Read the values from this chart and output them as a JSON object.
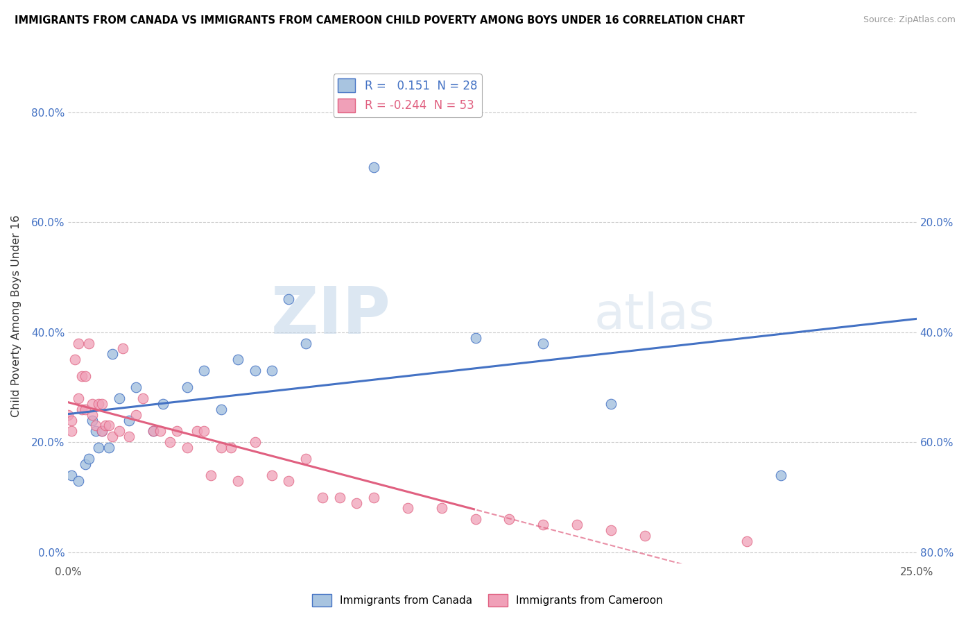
{
  "title": "IMMIGRANTS FROM CANADA VS IMMIGRANTS FROM CAMEROON CHILD POVERTY AMONG BOYS UNDER 16 CORRELATION CHART",
  "source": "Source: ZipAtlas.com",
  "ylabel": "Child Poverty Among Boys Under 16",
  "xlim": [
    0.0,
    0.25
  ],
  "ylim": [
    -0.02,
    0.88
  ],
  "yticks": [
    0.0,
    0.2,
    0.4,
    0.6,
    0.8
  ],
  "ytick_labels": [
    "0.0%",
    "20.0%",
    "40.0%",
    "60.0%",
    "80.0%"
  ],
  "right_ytick_labels": [
    "80.0%",
    "60.0%",
    "40.0%",
    "20.0%",
    ""
  ],
  "canada_R": 0.151,
  "canada_N": 28,
  "cameroon_R": -0.244,
  "cameroon_N": 53,
  "canada_color": "#a8c4e0",
  "cameroon_color": "#f0a0b8",
  "canada_line_color": "#4472c4",
  "cameroon_line_color": "#e06080",
  "watermark_zip": "ZIP",
  "watermark_atlas": "atlas",
  "canada_scatter_x": [
    0.001,
    0.003,
    0.005,
    0.006,
    0.007,
    0.008,
    0.009,
    0.01,
    0.012,
    0.013,
    0.015,
    0.018,
    0.02,
    0.025,
    0.028,
    0.035,
    0.04,
    0.045,
    0.05,
    0.055,
    0.06,
    0.065,
    0.07,
    0.09,
    0.12,
    0.14,
    0.16,
    0.21
  ],
  "canada_scatter_y": [
    0.14,
    0.13,
    0.16,
    0.17,
    0.24,
    0.22,
    0.19,
    0.22,
    0.19,
    0.36,
    0.28,
    0.24,
    0.3,
    0.22,
    0.27,
    0.3,
    0.33,
    0.26,
    0.35,
    0.33,
    0.33,
    0.46,
    0.38,
    0.7,
    0.39,
    0.38,
    0.27,
    0.14
  ],
  "cameroon_scatter_x": [
    0.0,
    0.001,
    0.001,
    0.002,
    0.003,
    0.003,
    0.004,
    0.004,
    0.005,
    0.005,
    0.006,
    0.007,
    0.007,
    0.008,
    0.009,
    0.01,
    0.01,
    0.011,
    0.012,
    0.013,
    0.015,
    0.016,
    0.018,
    0.02,
    0.022,
    0.025,
    0.027,
    0.03,
    0.032,
    0.035,
    0.038,
    0.04,
    0.042,
    0.045,
    0.048,
    0.05,
    0.055,
    0.06,
    0.065,
    0.07,
    0.075,
    0.08,
    0.085,
    0.09,
    0.1,
    0.11,
    0.12,
    0.13,
    0.14,
    0.15,
    0.16,
    0.17,
    0.2
  ],
  "cameroon_scatter_y": [
    0.25,
    0.24,
    0.22,
    0.35,
    0.38,
    0.28,
    0.32,
    0.26,
    0.32,
    0.26,
    0.38,
    0.25,
    0.27,
    0.23,
    0.27,
    0.27,
    0.22,
    0.23,
    0.23,
    0.21,
    0.22,
    0.37,
    0.21,
    0.25,
    0.28,
    0.22,
    0.22,
    0.2,
    0.22,
    0.19,
    0.22,
    0.22,
    0.14,
    0.19,
    0.19,
    0.13,
    0.2,
    0.14,
    0.13,
    0.17,
    0.1,
    0.1,
    0.09,
    0.1,
    0.08,
    0.08,
    0.06,
    0.06,
    0.05,
    0.05,
    0.04,
    0.03,
    0.02
  ]
}
